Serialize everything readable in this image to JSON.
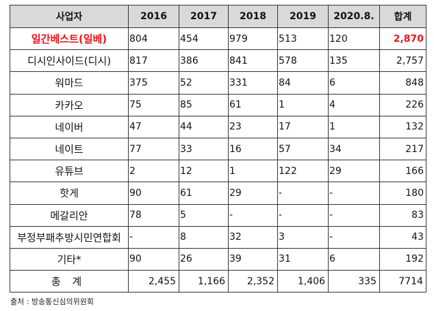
{
  "table": {
    "headers": [
      "사업자",
      "2016",
      "2017",
      "2018",
      "2019",
      "2020.8.",
      "합계"
    ],
    "rows": [
      {
        "name": "일간베스트(일베)",
        "values": [
          "804",
          "454",
          "979",
          "513",
          "120"
        ],
        "total": "2,870",
        "highlight": true
      },
      {
        "name": "디시인사이드(디시)",
        "values": [
          "817",
          "386",
          "841",
          "578",
          "135"
        ],
        "total": "2,757"
      },
      {
        "name": "워마드",
        "values": [
          "375",
          "52",
          "331",
          "84",
          "6"
        ],
        "total": "848"
      },
      {
        "name": "카카오",
        "values": [
          "75",
          "85",
          "61",
          "1",
          "4"
        ],
        "total": "226"
      },
      {
        "name": "네이버",
        "values": [
          "47",
          "44",
          "23",
          "17",
          "1"
        ],
        "total": "132"
      },
      {
        "name": "네이트",
        "values": [
          "77",
          "33",
          "16",
          "57",
          "34"
        ],
        "total": "217"
      },
      {
        "name": "유튜브",
        "values": [
          "2",
          "12",
          "1",
          "122",
          "29"
        ],
        "total": "166"
      },
      {
        "name": "핫게",
        "values": [
          "90",
          "61",
          "29",
          "-",
          "-"
        ],
        "total": "180"
      },
      {
        "name": "메갈리안",
        "values": [
          "78",
          "5",
          "-",
          "-",
          "-"
        ],
        "total": "83"
      },
      {
        "name": "부정부패추방시민연합회",
        "values": [
          "-",
          "8",
          "32",
          "3",
          "-"
        ],
        "total": "43"
      },
      {
        "name": "기타*",
        "values": [
          "90",
          "26",
          "39",
          "31",
          "6"
        ],
        "total": "192"
      }
    ],
    "sum": {
      "name": "총 계",
      "values": [
        "2,455",
        "1,166",
        "2,352",
        "1,406",
        "335"
      ],
      "total": "7714"
    }
  },
  "source": "출처 : 방송통신심의위원회",
  "colors": {
    "highlight": "#e8141b",
    "header_bg": "#d9d9d9"
  }
}
